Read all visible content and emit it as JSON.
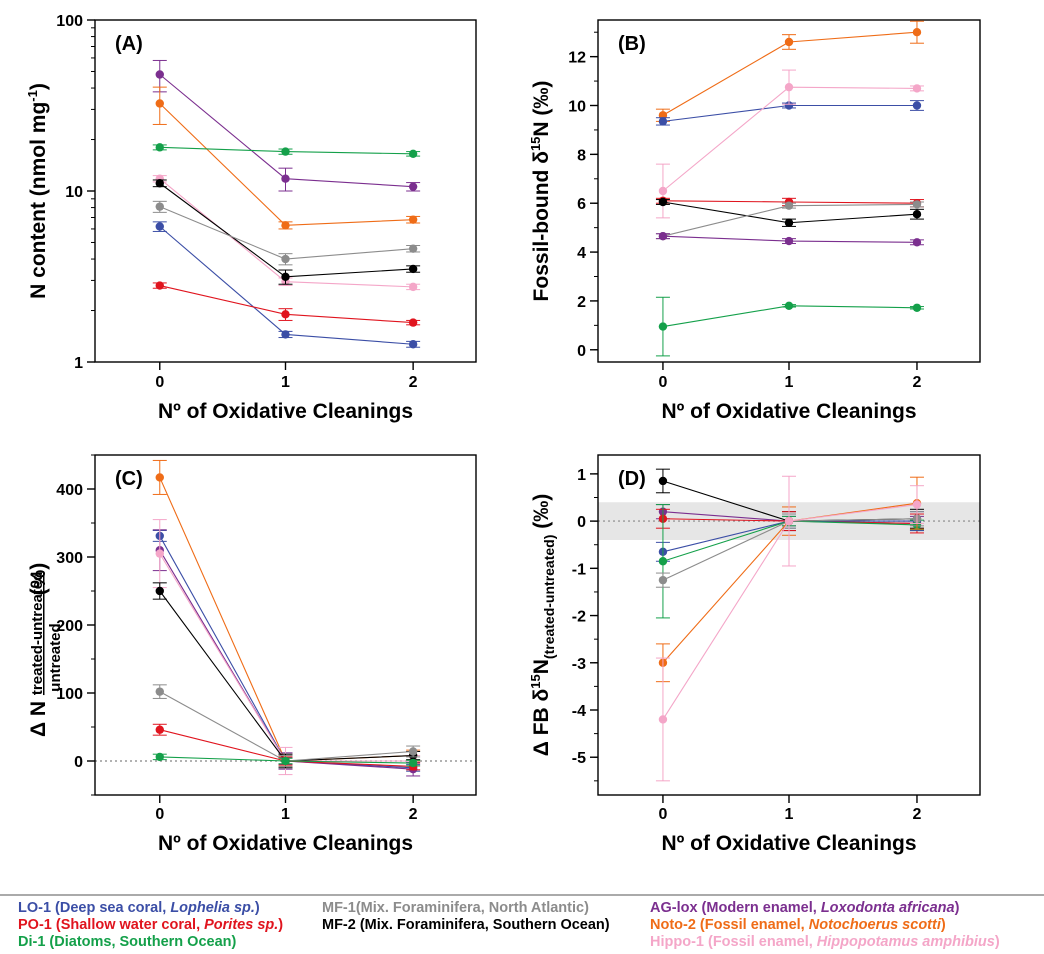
{
  "colors": {
    "LO-1": "#3b4ea6",
    "PO-1": "#e0141e",
    "Di-1": "#14a04a",
    "MF-1": "#8c8c8c",
    "MF-2": "#000000",
    "AG-lox": "#7b2f8f",
    "Noto-2": "#ef6c17",
    "Hippo-1": "#f4a6c8"
  },
  "legend": [
    {
      "key": "LO-1",
      "parts": [
        {
          "t": "LO-1 (Deep sea coral, "
        },
        {
          "t": "Lophelia sp.",
          "i": true
        },
        {
          "t": ")"
        }
      ]
    },
    {
      "key": "PO-1",
      "parts": [
        {
          "t": "PO-1 (Shallow water coral, "
        },
        {
          "t": "Porites sp.",
          "i": true
        },
        {
          "t": ")"
        }
      ]
    },
    {
      "key": "Di-1",
      "parts": [
        {
          "t": "Di-1 (Diatoms, Southern Ocean)"
        }
      ]
    },
    {
      "key": "MF-1",
      "parts": [
        {
          "t": "MF-1(Mix. Foraminifera, North Atlantic)"
        }
      ]
    },
    {
      "key": "MF-2",
      "parts": [
        {
          "t": "MF-2 (Mix. Foraminifera, Southern Ocean)"
        }
      ]
    },
    {
      "key": "AG-lox",
      "parts": [
        {
          "t": "AG-lox (Modern enamel, "
        },
        {
          "t": "Loxodonta africana",
          "i": true
        },
        {
          "t": ")"
        }
      ]
    },
    {
      "key": "Noto-2",
      "parts": [
        {
          "t": "Noto-2 (Fossil enamel, "
        },
        {
          "t": "Notochoerus scotti",
          "i": true
        },
        {
          "t": ")"
        }
      ]
    },
    {
      "key": "Hippo-1",
      "parts": [
        {
          "t": "Hippo-1 (Fossil enamel, "
        },
        {
          "t": "Hippopotamus amphibius",
          "i": true
        },
        {
          "t": ")"
        }
      ]
    }
  ],
  "chart_data": [
    {
      "panel": "(A)",
      "type": "line",
      "yscale": "log",
      "x": [
        0,
        1,
        2
      ],
      "xlabel": "Nº of Oxidative Cleanings",
      "ylabel": "N content (nmol mg-1)",
      "ylim": [
        1,
        100
      ],
      "yticks": [
        1,
        10,
        100
      ],
      "series": [
        {
          "name": "AG-lox",
          "values": [
            48,
            11.8,
            10.6
          ],
          "err": [
            10,
            1.8,
            0.6
          ]
        },
        {
          "name": "Noto-2",
          "values": [
            32.5,
            6.3,
            6.8
          ],
          "err": [
            8,
            0.3,
            0.3
          ]
        },
        {
          "name": "Di-1",
          "values": [
            18,
            17,
            16.5
          ],
          "err": [
            0.6,
            0.6,
            0.5
          ]
        },
        {
          "name": "Hippo-1",
          "values": [
            11.8,
            2.95,
            2.75
          ],
          "err": [
            0.5,
            0.15,
            0.1
          ]
        },
        {
          "name": "MF-2",
          "values": [
            11.1,
            3.15,
            3.5
          ],
          "err": [
            0.5,
            0.3,
            0.15
          ]
        },
        {
          "name": "MF-1",
          "values": [
            8.1,
            4.0,
            4.6
          ],
          "err": [
            0.6,
            0.3,
            0.2
          ]
        },
        {
          "name": "LO-1",
          "values": [
            6.2,
            1.45,
            1.27
          ],
          "err": [
            0.4,
            0.06,
            0.05
          ]
        },
        {
          "name": "PO-1",
          "values": [
            2.8,
            1.9,
            1.7
          ],
          "err": [
            0.1,
            0.15,
            0.05
          ]
        }
      ]
    },
    {
      "panel": "(B)",
      "type": "line",
      "x": [
        0,
        1,
        2
      ],
      "xlabel": "Nº of Oxidative Cleanings",
      "ylabel": "Fossil-bound δ15N (‰)",
      "ylim": [
        -0.5,
        13.5
      ],
      "yticks": [
        0,
        2,
        4,
        6,
        8,
        10,
        12
      ],
      "series": [
        {
          "name": "Noto-2",
          "values": [
            9.6,
            12.6,
            13.0
          ],
          "err": [
            0.25,
            0.3,
            0.45
          ]
        },
        {
          "name": "LO-1",
          "values": [
            9.35,
            10.0,
            10.0
          ],
          "err": [
            0.15,
            0.1,
            0.2
          ]
        },
        {
          "name": "Hippo-1",
          "values": [
            6.5,
            10.75,
            10.7
          ],
          "err": [
            1.1,
            0.7,
            0.1
          ]
        },
        {
          "name": "PO-1",
          "values": [
            6.1,
            6.05,
            6.0
          ],
          "err": [
            0.1,
            0.15,
            0.15
          ]
        },
        {
          "name": "MF-2",
          "values": [
            6.05,
            5.2,
            5.55
          ],
          "err": [
            0.1,
            0.15,
            0.2
          ]
        },
        {
          "name": "MF-1",
          "values": [
            4.65,
            5.9,
            5.95
          ],
          "err": [
            0.1,
            0.1,
            0.1
          ]
        },
        {
          "name": "AG-lox",
          "values": [
            4.65,
            4.45,
            4.4
          ],
          "err": [
            0.1,
            0.1,
            0.1
          ]
        },
        {
          "name": "Di-1",
          "values": [
            0.95,
            1.8,
            1.72
          ],
          "err": [
            1.2,
            0.05,
            0.05
          ]
        }
      ]
    },
    {
      "panel": "(C)",
      "type": "line",
      "x": [
        0,
        1,
        2
      ],
      "xlabel": "Nº of Oxidative Cleanings",
      "ylabel": "Δ N",
      "ylabel_sub_num": "treated-untreated",
      "ylabel_sub_den": "untreated",
      "ylabel_unit": "(%)",
      "ylim": [
        -50,
        450
      ],
      "yticks": [
        0,
        100,
        200,
        300,
        400
      ],
      "reference_line": 0,
      "series": [
        {
          "name": "Noto-2",
          "values": [
            417,
            0,
            8
          ],
          "err": [
            25,
            8,
            8
          ]
        },
        {
          "name": "LO-1",
          "values": [
            331,
            0,
            -10
          ],
          "err": [
            8,
            5,
            5
          ]
        },
        {
          "name": "AG-lox",
          "values": [
            310,
            0,
            -12
          ],
          "err": [
            30,
            12,
            10
          ]
        },
        {
          "name": "Hippo-1",
          "values": [
            305,
            0,
            0
          ],
          "err": [
            50,
            20,
            8
          ]
        },
        {
          "name": "MF-2",
          "values": [
            250,
            0,
            8
          ],
          "err": [
            12,
            10,
            6
          ]
        },
        {
          "name": "MF-1",
          "values": [
            102,
            0,
            14
          ],
          "err": [
            10,
            8,
            8
          ]
        },
        {
          "name": "PO-1",
          "values": [
            46,
            0,
            -8
          ],
          "err": [
            8,
            6,
            5
          ]
        },
        {
          "name": "Di-1",
          "values": [
            6,
            0,
            -3
          ],
          "err": [
            4,
            4,
            4
          ]
        }
      ]
    },
    {
      "panel": "(D)",
      "type": "line",
      "x": [
        0,
        1,
        2
      ],
      "xlabel": "Nº of Oxidative Cleanings",
      "ylabel": "Δ FB δ15N(treated-untreated) (‰)",
      "ylim": [
        -5.8,
        1.4
      ],
      "yticks": [
        1,
        0,
        -1,
        -2,
        -3,
        -4,
        -5
      ],
      "reference_line": 0,
      "shaded_band": [
        -0.4,
        0.4
      ],
      "series": [
        {
          "name": "MF-2",
          "values": [
            0.85,
            0,
            0.05
          ],
          "err": [
            0.25,
            0.2,
            0.2
          ]
        },
        {
          "name": "AG-lox",
          "values": [
            0.2,
            0,
            -0.05
          ],
          "err": [
            0.15,
            0.1,
            0.15
          ]
        },
        {
          "name": "PO-1",
          "values": [
            0.05,
            0,
            -0.05
          ],
          "err": [
            0.2,
            0.2,
            0.2
          ]
        },
        {
          "name": "LO-1",
          "values": [
            -0.65,
            0,
            0.0
          ],
          "err": [
            0.2,
            0.15,
            0.2
          ]
        },
        {
          "name": "Di-1",
          "values": [
            -0.85,
            0,
            -0.08
          ],
          "err": [
            1.2,
            0.1,
            0.1
          ]
        },
        {
          "name": "MF-1",
          "values": [
            -1.25,
            0,
            0.05
          ],
          "err": [
            0.15,
            0.15,
            0.15
          ]
        },
        {
          "name": "Noto-2",
          "values": [
            -3.0,
            0,
            0.38
          ],
          "err": [
            0.4,
            0.3,
            0.55
          ]
        },
        {
          "name": "Hippo-1",
          "values": [
            -4.2,
            0,
            0.35
          ],
          "err": [
            1.3,
            0.95,
            0.4
          ]
        }
      ]
    }
  ]
}
